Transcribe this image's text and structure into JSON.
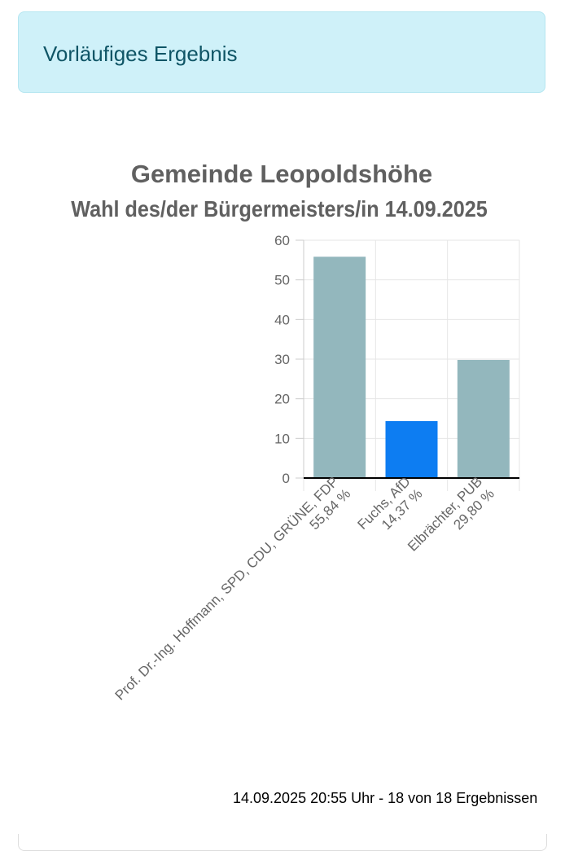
{
  "alert": {
    "text": "Vorläufiges Ergebnis"
  },
  "chart_data": {
    "type": "bar",
    "title": "Gemeinde Leopoldshöhe",
    "subtitle": "Wahl des/der Bürgermeisters/in 14.09.2025",
    "categories": [
      [
        "Prof. Dr.-Ing. Hoffmann, SPD, CDU, GRÜNE, FDP",
        "55,84 %"
      ],
      [
        "Fuchs, AfD",
        "14,37 %"
      ],
      [
        "Elbrächter, PUB",
        "29,80 %"
      ]
    ],
    "values": [
      55.84,
      14.37,
      29.8
    ],
    "colors": [
      "#93b7bd",
      "#0d7df2",
      "#93b7bd"
    ],
    "ylim": [
      0,
      60
    ],
    "yticks": [
      0,
      10,
      20,
      30,
      40,
      50,
      60
    ],
    "grid": true,
    "xlabel": "",
    "ylabel": ""
  },
  "footer": {
    "text": "14.09.2025 20:55 Uhr - 18 von 18 Ergebnissen"
  }
}
